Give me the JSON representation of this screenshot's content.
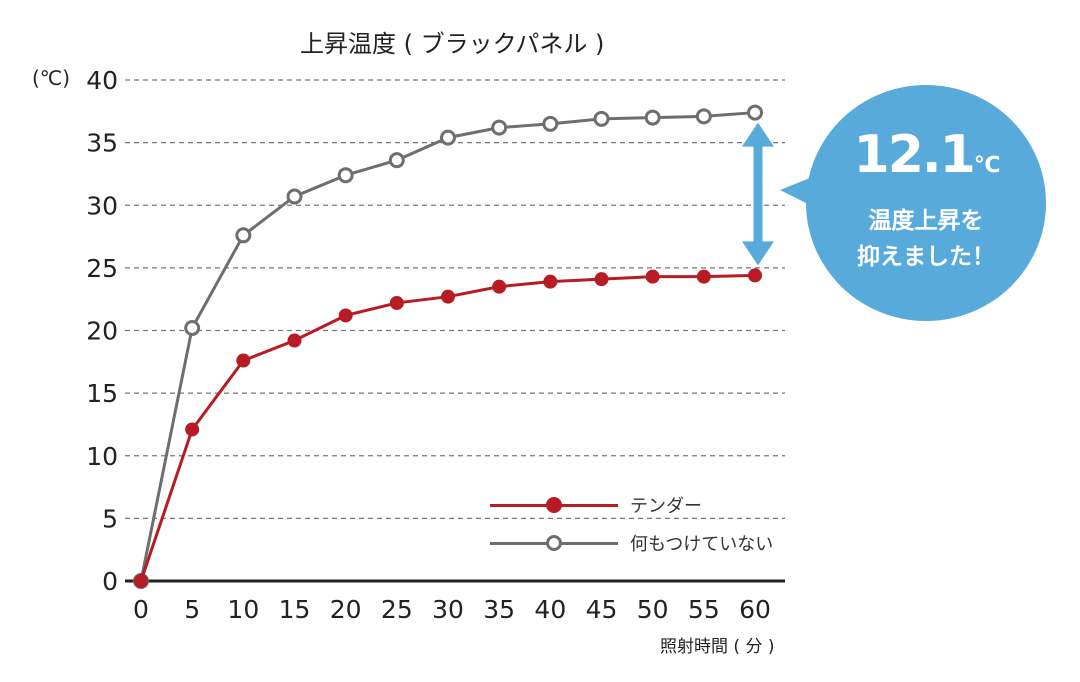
{
  "chart_data": {
    "type": "line",
    "title": "上昇温度 ( ブラックパネル )",
    "ylabel": "(℃)",
    "xlabel": "照射時間 ( 分 )",
    "x": [
      0,
      5,
      10,
      15,
      20,
      25,
      30,
      35,
      40,
      45,
      50,
      55,
      60
    ],
    "xticks": [
      "0",
      "5",
      "10",
      "15",
      "20",
      "25",
      "30",
      "35",
      "40",
      "45",
      "50",
      "55",
      "60"
    ],
    "yticks": [
      "0",
      "5",
      "10",
      "15",
      "20",
      "25",
      "30",
      "35",
      "40"
    ],
    "ylim": [
      0,
      40
    ],
    "xlim": [
      0,
      60
    ],
    "grid": "horizontal dashed",
    "legend_position": "bottom-right",
    "series": [
      {
        "name": "テンダー",
        "color": "#b71c24",
        "marker": "filled-circle",
        "values": [
          0,
          12.1,
          17.6,
          19.2,
          21.2,
          22.2,
          22.7,
          23.5,
          23.9,
          24.1,
          24.3,
          24.3,
          24.4
        ]
      },
      {
        "name": "何もつけていない",
        "color": "#6e6e6e",
        "marker": "open-circle",
        "values": [
          0,
          20.2,
          27.6,
          30.7,
          32.4,
          33.6,
          35.4,
          36.2,
          36.5,
          36.9,
          37.0,
          37.1,
          37.4
        ]
      }
    ],
    "annotation": {
      "value": "12.1",
      "unit": "℃",
      "line1": "温度上昇を",
      "line2": "抑えました！",
      "color": "#58aadb"
    }
  }
}
